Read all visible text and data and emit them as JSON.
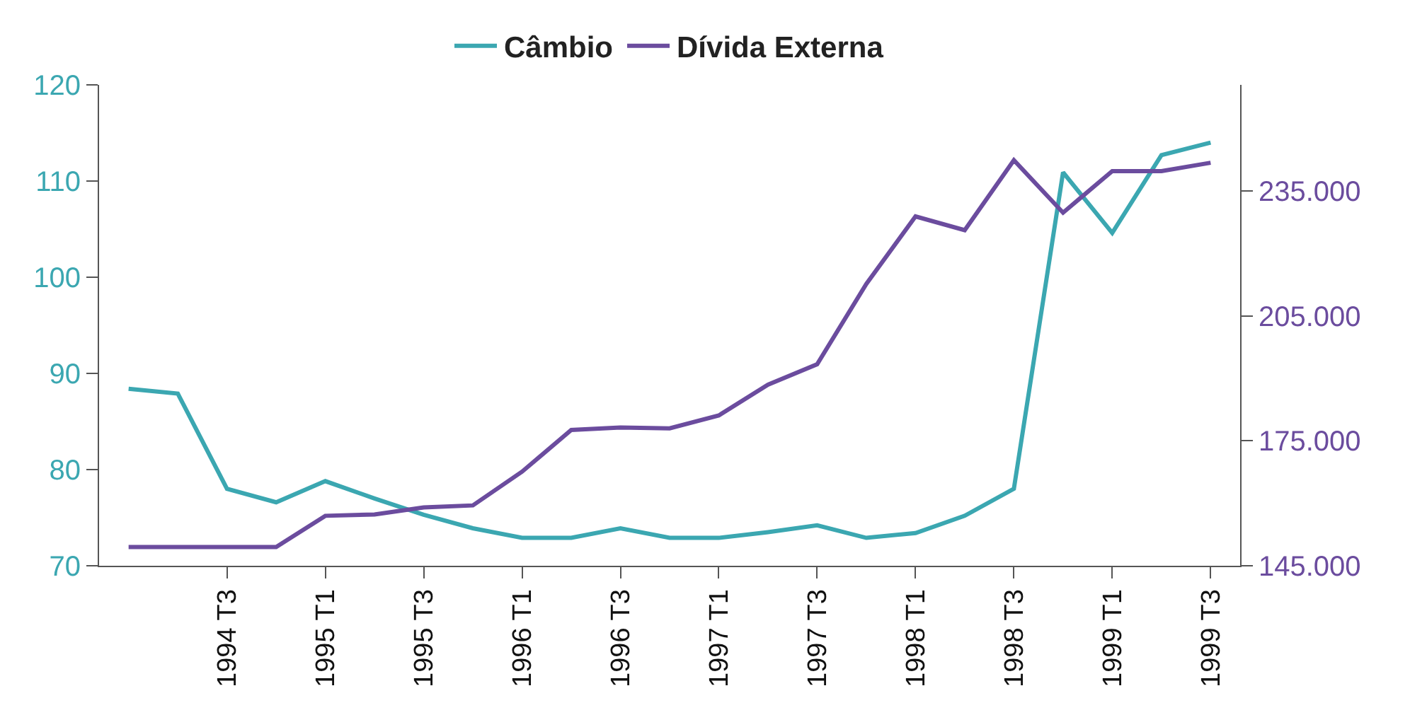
{
  "chart_data": {
    "type": "line",
    "categories": [
      null,
      null,
      "1994 T3",
      null,
      "1995 T1",
      null,
      "1995 T3",
      null,
      "1996 T1",
      null,
      "1996 T3",
      null,
      "1997 T1",
      null,
      "1997 T3",
      null,
      "1998 T1",
      null,
      "1998 T3",
      null,
      "1999 T1",
      null,
      "1999 T3"
    ],
    "series": [
      {
        "name": "Câmbio",
        "color": "#3ba7b1",
        "values": [
          88.4,
          87.9,
          78.0,
          76.6,
          78.8,
          77.0,
          75.3,
          73.9,
          72.9,
          72.9,
          73.9,
          72.9,
          72.9,
          73.5,
          74.2,
          72.9,
          73.4,
          75.2,
          78.0,
          110.9,
          104.6,
          112.7,
          114.0
        ]
      },
      {
        "name": "Dívida Externa",
        "color": "#6b4c9e",
        "axis": "y2",
        "values": [
          149500,
          149500,
          149500,
          149500,
          157000,
          157300,
          159000,
          159500,
          167600,
          177600,
          178200,
          178000,
          181100,
          188500,
          193400,
          212700,
          228900,
          225600,
          242400,
          229800,
          239800,
          239800,
          241800
        ]
      }
    ],
    "ylim": [
      70,
      120
    ],
    "yticks": [
      70,
      80,
      90,
      100,
      110,
      120
    ],
    "y2lim": [
      145000,
      260500
    ],
    "y2ticks": [
      {
        "value": 145000,
        "label": "145.000"
      },
      {
        "value": 175000,
        "label": "175.000"
      },
      {
        "value": 205000,
        "label": "205.000"
      },
      {
        "value": 235000,
        "label": "235.000"
      }
    ],
    "grid": false,
    "legend": "top",
    "marker": "none",
    "line_style": "solid"
  }
}
